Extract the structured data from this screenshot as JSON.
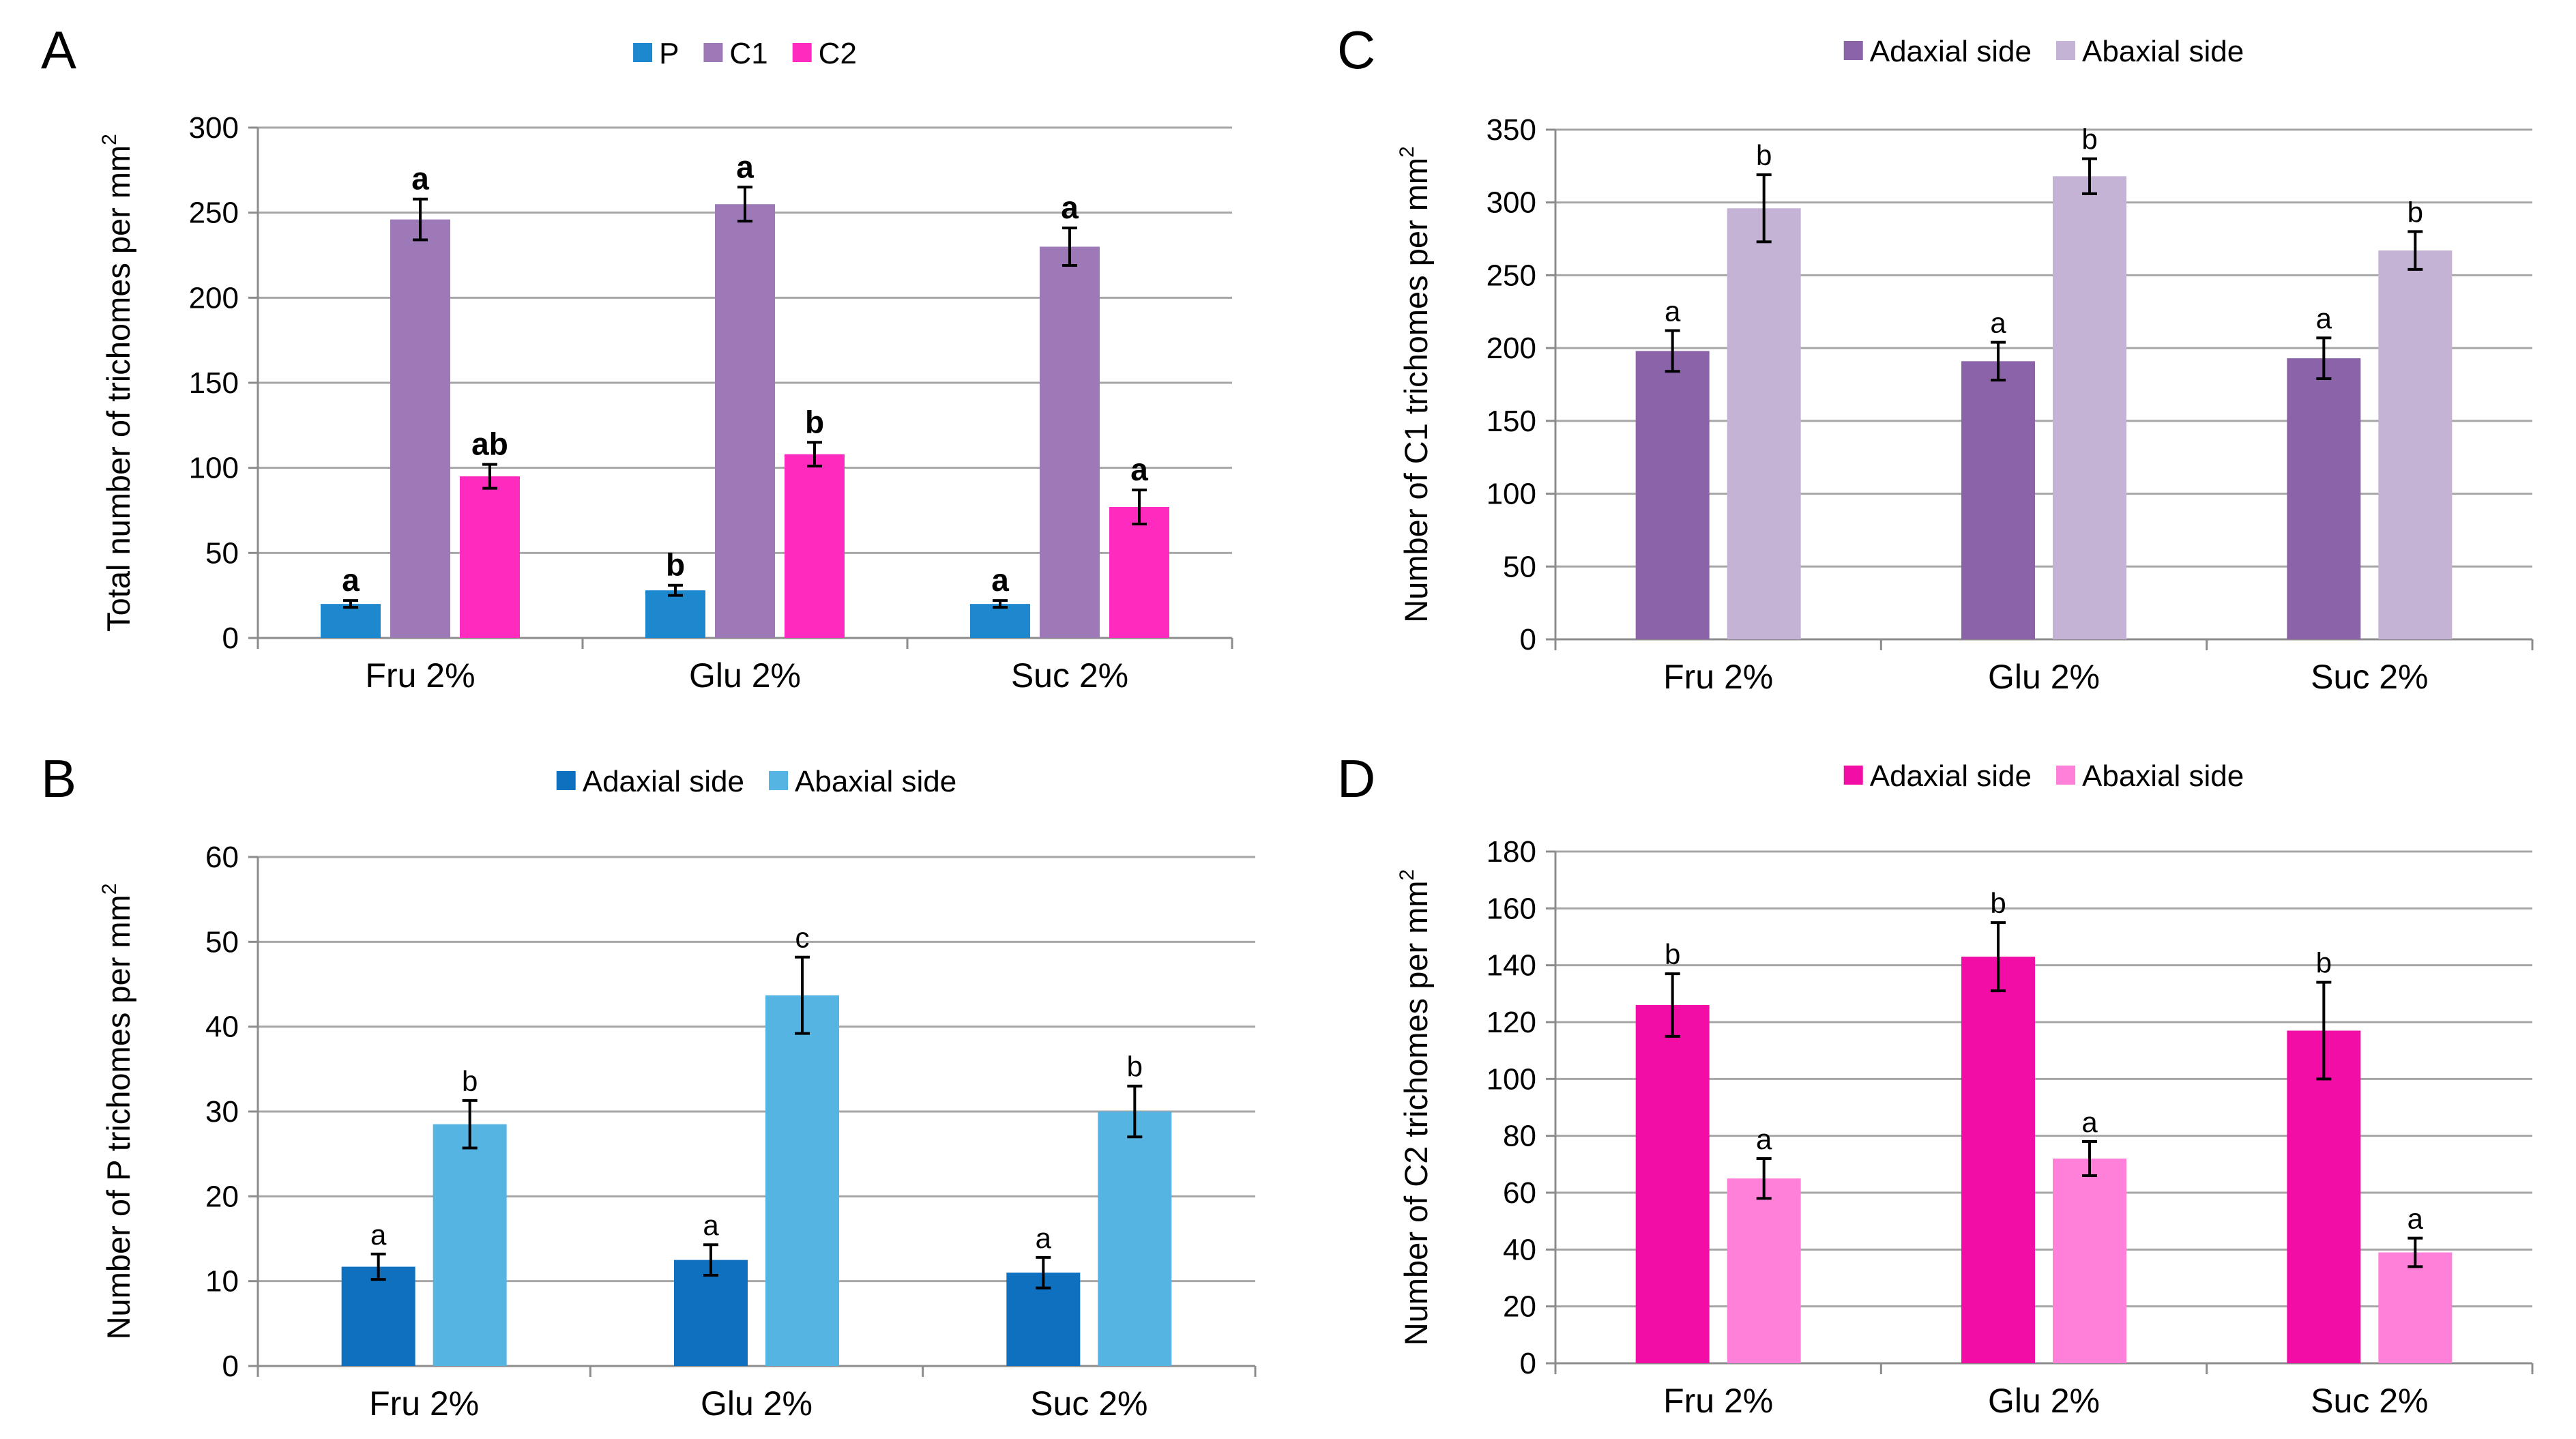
{
  "chart_data": [
    {
      "panel": "A",
      "type": "bar",
      "categories": [
        "Fru 2%",
        "Glu 2%",
        "Suc 2%"
      ],
      "ylabel": "Total number of trichomes per mm",
      "ylabel_sup": "2",
      "ylim": [
        0,
        300
      ],
      "yticks": [
        0,
        50,
        100,
        150,
        200,
        250,
        300
      ],
      "legend_position": "top-center",
      "series": [
        {
          "name": "P",
          "color": "#1e88cf",
          "values": [
            20,
            28,
            20
          ],
          "errors": [
            2,
            3,
            2
          ],
          "letters": [
            "a",
            "b",
            "a"
          ]
        },
        {
          "name": "C1",
          "color": "#9d7ab7",
          "values": [
            246,
            255,
            230
          ],
          "errors": [
            12,
            10,
            11
          ],
          "letters": [
            "a",
            "a",
            "a"
          ]
        },
        {
          "name": "C2",
          "color": "#ff2bbf",
          "values": [
            95,
            108,
            77
          ],
          "errors": [
            7,
            7,
            10
          ],
          "letters": [
            "ab",
            "b",
            "a"
          ]
        }
      ]
    },
    {
      "panel": "B",
      "type": "bar",
      "categories": [
        "Fru 2%",
        "Glu 2%",
        "Suc 2%"
      ],
      "ylabel": "Number of P trichomes per mm",
      "ylabel_sup": "2",
      "ylim": [
        0,
        60
      ],
      "yticks": [
        0,
        10,
        20,
        30,
        40,
        50,
        60
      ],
      "legend_position": "top-center",
      "series": [
        {
          "name": "Adaxial side",
          "color": "#0f70c0",
          "values": [
            11.7,
            12.5,
            11
          ],
          "errors": [
            1.5,
            1.8,
            1.8
          ],
          "letters": [
            "a",
            "a",
            "a"
          ]
        },
        {
          "name": "Abaxial side",
          "color": "#56b4e3",
          "values": [
            28.5,
            43.7,
            30
          ],
          "errors": [
            2.8,
            4.5,
            3
          ],
          "letters": [
            "b",
            "c",
            "b"
          ]
        }
      ]
    },
    {
      "panel": "C",
      "type": "bar",
      "categories": [
        "Fru 2%",
        "Glu 2%",
        "Suc 2%"
      ],
      "ylabel": "Number of C1 trichomes per mm",
      "ylabel_sup": "2",
      "ylim": [
        0,
        350
      ],
      "yticks": [
        0,
        50,
        100,
        150,
        200,
        250,
        300,
        350
      ],
      "legend_position": "top-center",
      "series": [
        {
          "name": "Adaxial side",
          "color": "#8a63a8",
          "values": [
            198,
            191,
            193
          ],
          "errors": [
            14,
            13,
            14
          ],
          "letters": [
            "a",
            "a",
            "a"
          ]
        },
        {
          "name": "Abaxial side",
          "color": "#c5b3d6",
          "values": [
            296,
            318,
            267
          ],
          "errors": [
            23,
            12,
            13
          ],
          "letters": [
            "b",
            "b",
            "b"
          ]
        }
      ]
    },
    {
      "panel": "D",
      "type": "bar",
      "categories": [
        "Fru 2%",
        "Glu 2%",
        "Suc 2%"
      ],
      "ylabel": "Number of C2 trichomes per mm",
      "ylabel_sup": "2",
      "ylim": [
        0,
        180
      ],
      "yticks": [
        0,
        20,
        40,
        60,
        80,
        100,
        120,
        140,
        160,
        180
      ],
      "legend_position": "top-center",
      "series": [
        {
          "name": "Adaxial side",
          "color": "#f20ea6",
          "values": [
            126,
            143,
            117
          ],
          "errors": [
            11,
            12,
            17
          ],
          "letters": [
            "b",
            "b",
            "b"
          ]
        },
        {
          "name": "Abaxial side",
          "color": "#ff80d8",
          "values": [
            65,
            72,
            39
          ],
          "errors": [
            7,
            6,
            5
          ],
          "letters": [
            "a",
            "a",
            "a"
          ]
        }
      ]
    }
  ]
}
